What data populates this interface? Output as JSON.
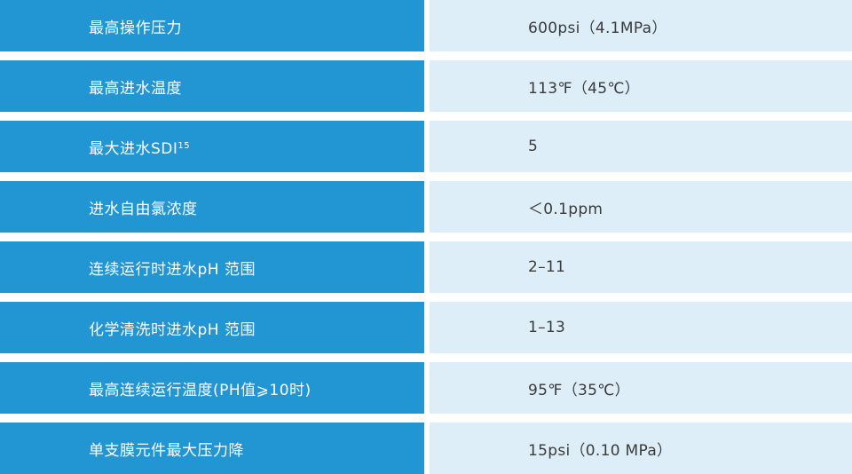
{
  "colors": {
    "label_cell_bg": "#2196d3",
    "value_cell_bg": "#ddeef8",
    "label_text": "#ffffff",
    "value_text": "#3a3a3a",
    "row_gap": "#ffffff"
  },
  "rows": [
    {
      "label": "最高操作压力",
      "label_sub": "",
      "value": "600psi（4.1MPa）"
    },
    {
      "label": "最高进水温度",
      "label_sub": "",
      "value": "113℉（45℃）"
    },
    {
      "label": "最大进水SDI",
      "label_sub": "15",
      "value": "5"
    },
    {
      "label": "进水自由氯浓度",
      "label_sub": "",
      "value": "＜0.1ppm"
    },
    {
      "label": "连续运行时进水pH 范围",
      "label_sub": "",
      "value": "2–11"
    },
    {
      "label": "化学清洗时进水pH 范围",
      "label_sub": "",
      "value": "1–13"
    },
    {
      "label": "最高连续运行温度(PH值⩾10时)",
      "label_sub": "",
      "value": "95℉（35℃）"
    },
    {
      "label": "单支膜元件最大压力降",
      "label_sub": "",
      "value": "15psi（0.10 MPa）"
    }
  ]
}
